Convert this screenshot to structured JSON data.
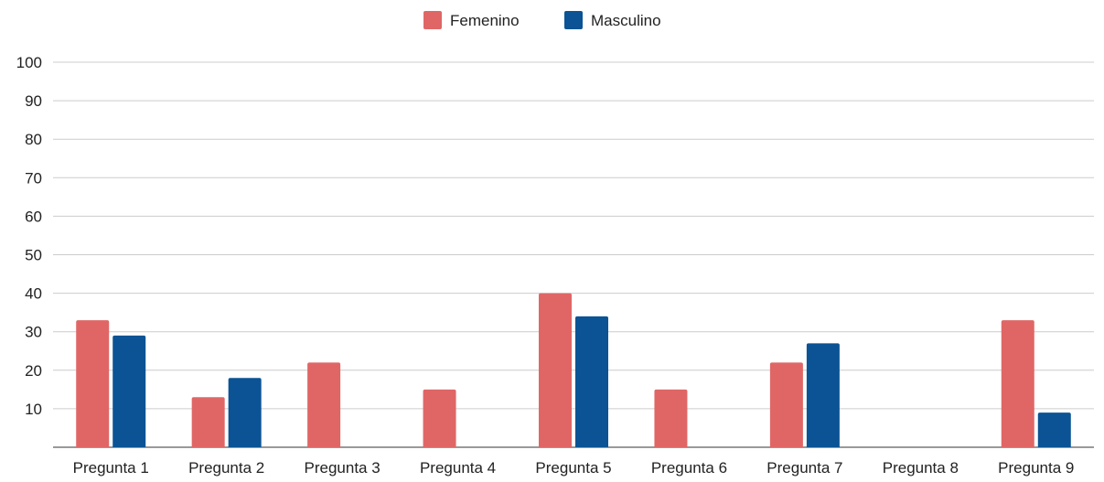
{
  "chart_data": {
    "type": "bar",
    "categories": [
      "Pregunta 1",
      "Pregunta 2",
      "Pregunta 3",
      "Pregunta 4",
      "Pregunta 5",
      "Pregunta 6",
      "Pregunta 7",
      "Pregunta 8",
      "Pregunta 9"
    ],
    "series": [
      {
        "name": "Femenino",
        "color": "#e06666",
        "values": [
          33,
          13,
          22,
          15,
          40,
          15,
          22,
          0,
          33
        ]
      },
      {
        "name": "Masculino",
        "color": "#0b5394",
        "values": [
          29,
          18,
          0,
          0,
          34,
          0,
          27,
          0,
          9
        ]
      }
    ],
    "ylim": [
      0,
      100
    ],
    "yticks": [
      10,
      20,
      30,
      40,
      50,
      60,
      70,
      80,
      90,
      100
    ],
    "grid": true,
    "legend_position": "top-center",
    "title": "",
    "xlabel": "",
    "ylabel": ""
  }
}
